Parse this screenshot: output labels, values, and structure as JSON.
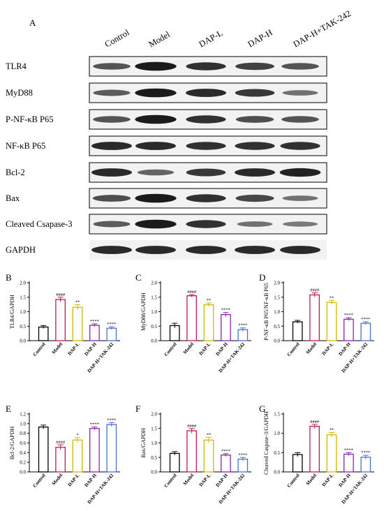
{
  "figure": {
    "blot_panel_letter": "A",
    "lane_labels": [
      "Control",
      "Model",
      "DAP-L",
      "DAP-H",
      "DAP-H+TAK-242"
    ],
    "blot_rows": [
      {
        "label": "TLR4",
        "intensity": [
          0.55,
          0.95,
          0.8,
          0.7,
          0.55
        ]
      },
      {
        "label": "MyD88",
        "intensity": [
          0.5,
          0.95,
          0.85,
          0.75,
          0.35
        ]
      },
      {
        "label": "P-NF-κB P65",
        "intensity": [
          0.55,
          0.95,
          0.8,
          0.6,
          0.55
        ]
      },
      {
        "label": "NF-κB P65",
        "intensity": [
          0.85,
          0.85,
          0.8,
          0.8,
          0.8
        ]
      },
      {
        "label": "Bcl-2",
        "intensity": [
          0.85,
          0.45,
          0.75,
          0.85,
          0.9
        ]
      },
      {
        "label": "Bax",
        "intensity": [
          0.6,
          0.95,
          0.8,
          0.65,
          0.35
        ]
      },
      {
        "label": "Cleaved Csapase-3",
        "intensity": [
          0.5,
          0.95,
          0.8,
          0.35,
          0.3
        ]
      },
      {
        "label": "GAPDH",
        "intensity": [
          0.85,
          0.85,
          0.85,
          0.85,
          0.85
        ]
      }
    ]
  },
  "chart_data": [
    {
      "panel": "B",
      "type": "bar",
      "categories": [
        "Control",
        "Model",
        "DAP-L",
        "DAP-H",
        "DAP-H+TAK-242"
      ],
      "values": [
        0.47,
        1.42,
        1.15,
        0.53,
        0.43
      ],
      "errors": [
        0.05,
        0.08,
        0.09,
        0.05,
        0.05
      ],
      "significance": [
        "",
        "####",
        "**",
        "****",
        "****"
      ],
      "ylabel": "TLR4/GAPDH",
      "ylim": [
        0,
        2.0
      ],
      "yticks": [
        "0.0",
        "0.5",
        "1.0",
        "1.5",
        "2.0"
      ]
    },
    {
      "panel": "C",
      "type": "bar",
      "categories": [
        "Control",
        "Model",
        "DAP-L",
        "DAP-H",
        "DAP-H+TAK-242"
      ],
      "values": [
        0.52,
        1.55,
        1.24,
        0.9,
        0.38
      ],
      "errors": [
        0.08,
        0.04,
        0.06,
        0.07,
        0.06
      ],
      "significance": [
        "",
        "####",
        "**",
        "****",
        "****"
      ],
      "ylabel": "MyD88/GAPDH",
      "ylim": [
        0,
        2.0
      ],
      "yticks": [
        "0.0",
        "0.5",
        "1.0",
        "1.5",
        "2.0"
      ]
    },
    {
      "panel": "D",
      "type": "bar",
      "categories": [
        "Control",
        "Model",
        "DAP-L",
        "DAP-H",
        "DAP-H+TAK-242"
      ],
      "values": [
        0.65,
        1.58,
        1.32,
        0.74,
        0.6
      ],
      "errors": [
        0.05,
        0.07,
        0.07,
        0.05,
        0.05
      ],
      "significance": [
        "",
        "####",
        "**",
        "****",
        "****"
      ],
      "ylabel": "P-NF-κB P65/NF-κB P65",
      "ylim": [
        0,
        2.0
      ],
      "yticks": [
        "0.0",
        "0.5",
        "1.0",
        "1.5",
        "2.0"
      ]
    },
    {
      "panel": "E",
      "type": "bar",
      "categories": [
        "Control",
        "Model",
        "DAP-L",
        "DAP-H",
        "DAP-H+TAK-242"
      ],
      "values": [
        0.93,
        0.51,
        0.66,
        0.9,
        0.98
      ],
      "errors": [
        0.04,
        0.05,
        0.05,
        0.03,
        0.04
      ],
      "significance": [
        "",
        "####",
        "*",
        "****",
        "****"
      ],
      "ylabel": "Bcl-2/GAPDH",
      "ylim": [
        0,
        1.2
      ],
      "yticks": [
        "0.0",
        "0.2",
        "0.4",
        "0.6",
        "0.8",
        "1.0",
        "1.2"
      ]
    },
    {
      "panel": "F",
      "type": "bar",
      "categories": [
        "Control",
        "Model",
        "DAP-L",
        "DAP-H",
        "DAP-H+TAK-242"
      ],
      "values": [
        0.64,
        1.42,
        1.1,
        0.58,
        0.44
      ],
      "errors": [
        0.06,
        0.08,
        0.09,
        0.05,
        0.06
      ],
      "significance": [
        "",
        "####",
        "**",
        "****",
        "****"
      ],
      "ylabel": "Bax/GAPDH",
      "ylim": [
        0,
        2.0
      ],
      "yticks": [
        "0.0",
        "0.5",
        "1.0",
        "1.5",
        "2.0"
      ]
    },
    {
      "panel": "G",
      "type": "bar",
      "categories": [
        "Control",
        "Model",
        "DAP-L",
        "DAP-H",
        "DAP-H+TAK-242"
      ],
      "values": [
        0.45,
        1.18,
        0.96,
        0.46,
        0.38
      ],
      "errors": [
        0.05,
        0.05,
        0.06,
        0.04,
        0.05
      ],
      "significance": [
        "",
        "####",
        "**",
        "****",
        "****"
      ],
      "ylabel": "Cleaved Caspase-3/GAPDH",
      "ylim": [
        0,
        1.5
      ],
      "yticks": [
        "0.0",
        "0.5",
        "1.0",
        "1.5"
      ]
    }
  ],
  "colors": {
    "bars": [
      "#000000",
      "#c2185b",
      "#d4b800",
      "#8e24aa",
      "#4a6fd4"
    ],
    "blot_band": "#141414",
    "blot_bg": "#f2f2f2"
  }
}
